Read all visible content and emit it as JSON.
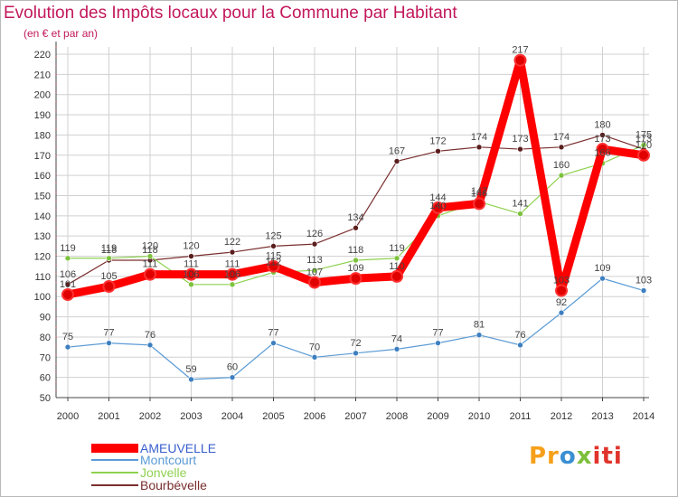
{
  "header": {
    "title": "Evolution des Impôts locaux pour la Commune par Habitant",
    "subtitle": "(en € et par an)"
  },
  "logo": {
    "text": "Proxiti"
  },
  "colors": {
    "title": "#c2185b",
    "grid": "#d0d0d0",
    "axis": "#444444"
  },
  "chart_data": {
    "type": "line",
    "title": "Evolution des Impôts locaux pour la Commune par Habitant",
    "subtitle": "(en € et par an)",
    "xlabel": "",
    "ylabel": "",
    "x": [
      "2000",
      "2001",
      "2002",
      "2003",
      "2004",
      "2005",
      "2006",
      "2007",
      "2008",
      "2009",
      "2010",
      "2011",
      "2012",
      "2013",
      "2014"
    ],
    "ylim": [
      50,
      220
    ],
    "yticks": [
      50,
      60,
      70,
      80,
      90,
      100,
      110,
      120,
      130,
      140,
      150,
      160,
      170,
      180,
      190,
      200,
      210,
      220
    ],
    "grid": true,
    "legend_position": "bottom-left",
    "series": [
      {
        "name": "AMEUVELLE",
        "color": "#ff0000",
        "marker": "#e00000",
        "width": 9,
        "values": [
          101,
          105,
          111,
          111,
          111,
          115,
          107,
          109,
          110,
          144,
          146,
          217,
          103,
          173,
          170
        ],
        "labels": [
          "101",
          "105",
          "111",
          "111",
          "111",
          "115",
          "107",
          "109",
          "110",
          "144",
          "146",
          "217",
          "103",
          "173",
          "170"
        ]
      },
      {
        "name": "Montcourt",
        "color": "#5b9bd5",
        "marker": "#3d7fc0",
        "width": 1.2,
        "values": [
          75,
          77,
          76,
          59,
          60,
          77,
          70,
          72,
          74,
          77,
          81,
          76,
          92,
          109,
          103
        ],
        "labels": [
          "75",
          "77",
          "76",
          "59",
          "60",
          "77",
          "70",
          "72",
          "74",
          "77",
          "81",
          "76",
          "92",
          "109",
          "103"
        ]
      },
      {
        "name": "Jonvelle",
        "color": "#8fd14f",
        "marker": "#7cc23c",
        "width": 1.2,
        "values": [
          119,
          119,
          120,
          106,
          106,
          112,
          113,
          118,
          119,
          140,
          147,
          141,
          160,
          166,
          175
        ],
        "labels": [
          "119",
          "119",
          "120",
          "106",
          "106",
          "112",
          "113",
          "118",
          "119",
          "140",
          "147",
          "141",
          "160",
          "166",
          "175"
        ]
      },
      {
        "name": "Bourbévelle",
        "color": "#7a2e2e",
        "marker": "#5a1d1d",
        "width": 1.2,
        "values": [
          106,
          118,
          118,
          120,
          122,
          125,
          126,
          134,
          167,
          172,
          174,
          173,
          174,
          180,
          173
        ],
        "labels": [
          "106",
          "118",
          "118",
          "120",
          "122",
          "125",
          "126",
          "134",
          "167",
          "172",
          "174",
          "173",
          "174",
          "180",
          "173"
        ]
      }
    ]
  }
}
